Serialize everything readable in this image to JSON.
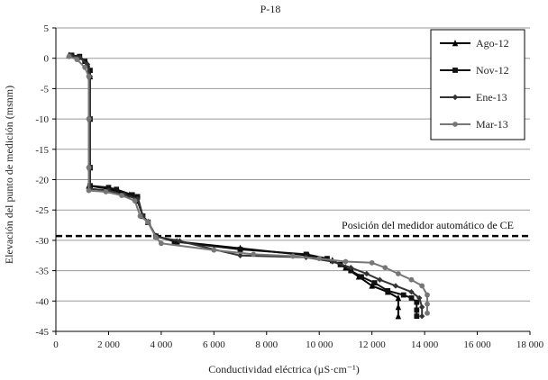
{
  "chart_data": {
    "type": "line",
    "title": "P-18",
    "xlabel": "Conductividad eléctrica (µS·cm⁻¹)",
    "ylabel": "Elevación del punto de medición (msnm)",
    "xlim": [
      0,
      18000
    ],
    "ylim": [
      -45,
      5
    ],
    "x_ticks": [
      "0",
      "2 000",
      "4 000",
      "6 000",
      "8 000",
      "10 000",
      "12 000",
      "14 000",
      "16 000",
      "18 000"
    ],
    "x_tick_values": [
      0,
      2000,
      4000,
      6000,
      8000,
      10000,
      12000,
      14000,
      16000,
      18000
    ],
    "y_ticks": [
      "5",
      "0",
      "-5",
      "-10",
      "-15",
      "-20",
      "-25",
      "-30",
      "-35",
      "-40",
      "-45"
    ],
    "y_tick_values": [
      5,
      0,
      -5,
      -10,
      -15,
      -20,
      -25,
      -30,
      -35,
      -40,
      -45
    ],
    "grid": "horizontal",
    "legend_position": "top-right",
    "annotation": {
      "text": "Posición del medidor automático de CE",
      "y": -29.3
    },
    "series": [
      {
        "name": "Ago-12",
        "color": "#000000",
        "marker": "triangle",
        "points": [
          [
            500,
            0.5
          ],
          [
            900,
            0.2
          ],
          [
            1200,
            -1
          ],
          [
            1300,
            -3
          ],
          [
            1300,
            -10
          ],
          [
            1300,
            -18
          ],
          [
            1250,
            -21
          ],
          [
            2000,
            -21.5
          ],
          [
            2800,
            -22.5
          ],
          [
            3100,
            -23.5
          ],
          [
            3300,
            -26
          ],
          [
            3500,
            -27
          ],
          [
            3800,
            -29.3
          ],
          [
            4600,
            -30.2
          ],
          [
            7000,
            -31.3
          ],
          [
            9600,
            -32.5
          ],
          [
            10500,
            -33.3
          ],
          [
            11000,
            -34.5
          ],
          [
            11500,
            -36
          ],
          [
            12000,
            -37.5
          ],
          [
            12600,
            -38.5
          ],
          [
            13000,
            -39.5
          ],
          [
            13000,
            -41
          ],
          [
            13000,
            -42.5
          ]
        ]
      },
      {
        "name": "Nov-12",
        "color": "#111111",
        "marker": "square",
        "points": [
          [
            600,
            0.5
          ],
          [
            900,
            0.3
          ],
          [
            1100,
            -0.5
          ],
          [
            1300,
            -2
          ],
          [
            1300,
            -10
          ],
          [
            1300,
            -18
          ],
          [
            1300,
            -21
          ],
          [
            2000,
            -21.3
          ],
          [
            2300,
            -21.6
          ],
          [
            2900,
            -22.5
          ],
          [
            3100,
            -22.8
          ],
          [
            3300,
            -26
          ],
          [
            3500,
            -27
          ],
          [
            3800,
            -29.3
          ],
          [
            4500,
            -30.2
          ],
          [
            7000,
            -31.5
          ],
          [
            9500,
            -32.3
          ],
          [
            10300,
            -33
          ],
          [
            10800,
            -34
          ],
          [
            11200,
            -35
          ],
          [
            11600,
            -36
          ],
          [
            12100,
            -37
          ],
          [
            12600,
            -38.3
          ],
          [
            13200,
            -39
          ],
          [
            13500,
            -39.5
          ],
          [
            13700,
            -40.2
          ],
          [
            13700,
            -41.5
          ],
          [
            13700,
            -42.5
          ]
        ]
      },
      {
        "name": "Ene-13",
        "color": "#333333",
        "marker": "diamond",
        "points": [
          [
            550,
            0.5
          ],
          [
            900,
            0.1
          ],
          [
            1200,
            -1
          ],
          [
            1300,
            -3
          ],
          [
            1300,
            -10
          ],
          [
            1300,
            -18
          ],
          [
            1300,
            -21.5
          ],
          [
            2000,
            -21.8
          ],
          [
            2600,
            -22.5
          ],
          [
            3100,
            -23.2
          ],
          [
            3300,
            -26
          ],
          [
            3500,
            -27
          ],
          [
            3800,
            -29.4
          ],
          [
            4700,
            -30.1
          ],
          [
            6000,
            -31.5
          ],
          [
            7000,
            -32.5
          ],
          [
            9500,
            -32.8
          ],
          [
            10500,
            -33.5
          ],
          [
            11200,
            -34.5
          ],
          [
            11800,
            -35.5
          ],
          [
            12300,
            -36.5
          ],
          [
            12900,
            -37.5
          ],
          [
            13500,
            -38.5
          ],
          [
            13800,
            -39.5
          ],
          [
            13900,
            -41
          ],
          [
            13900,
            -42.5
          ]
        ]
      },
      {
        "name": "Mar-13",
        "color": "#777777",
        "marker": "circle",
        "points": [
          [
            500,
            0.3
          ],
          [
            800,
            -0.2
          ],
          [
            1100,
            -1.5
          ],
          [
            1250,
            -3
          ],
          [
            1250,
            -10
          ],
          [
            1250,
            -18
          ],
          [
            1250,
            -21.8
          ],
          [
            1900,
            -22
          ],
          [
            2500,
            -22.6
          ],
          [
            3000,
            -23.5
          ],
          [
            3200,
            -26
          ],
          [
            3500,
            -27
          ],
          [
            3800,
            -29.5
          ],
          [
            4000,
            -30.5
          ],
          [
            6000,
            -31.6
          ],
          [
            7500,
            -32.3
          ],
          [
            9000,
            -32.6
          ],
          [
            10000,
            -33
          ],
          [
            11000,
            -33.5
          ],
          [
            12000,
            -33.7
          ],
          [
            12500,
            -34.5
          ],
          [
            13000,
            -35.5
          ],
          [
            13500,
            -36.5
          ],
          [
            13900,
            -37.5
          ],
          [
            14100,
            -39
          ],
          [
            14100,
            -40.5
          ],
          [
            14100,
            -42
          ]
        ]
      }
    ]
  }
}
